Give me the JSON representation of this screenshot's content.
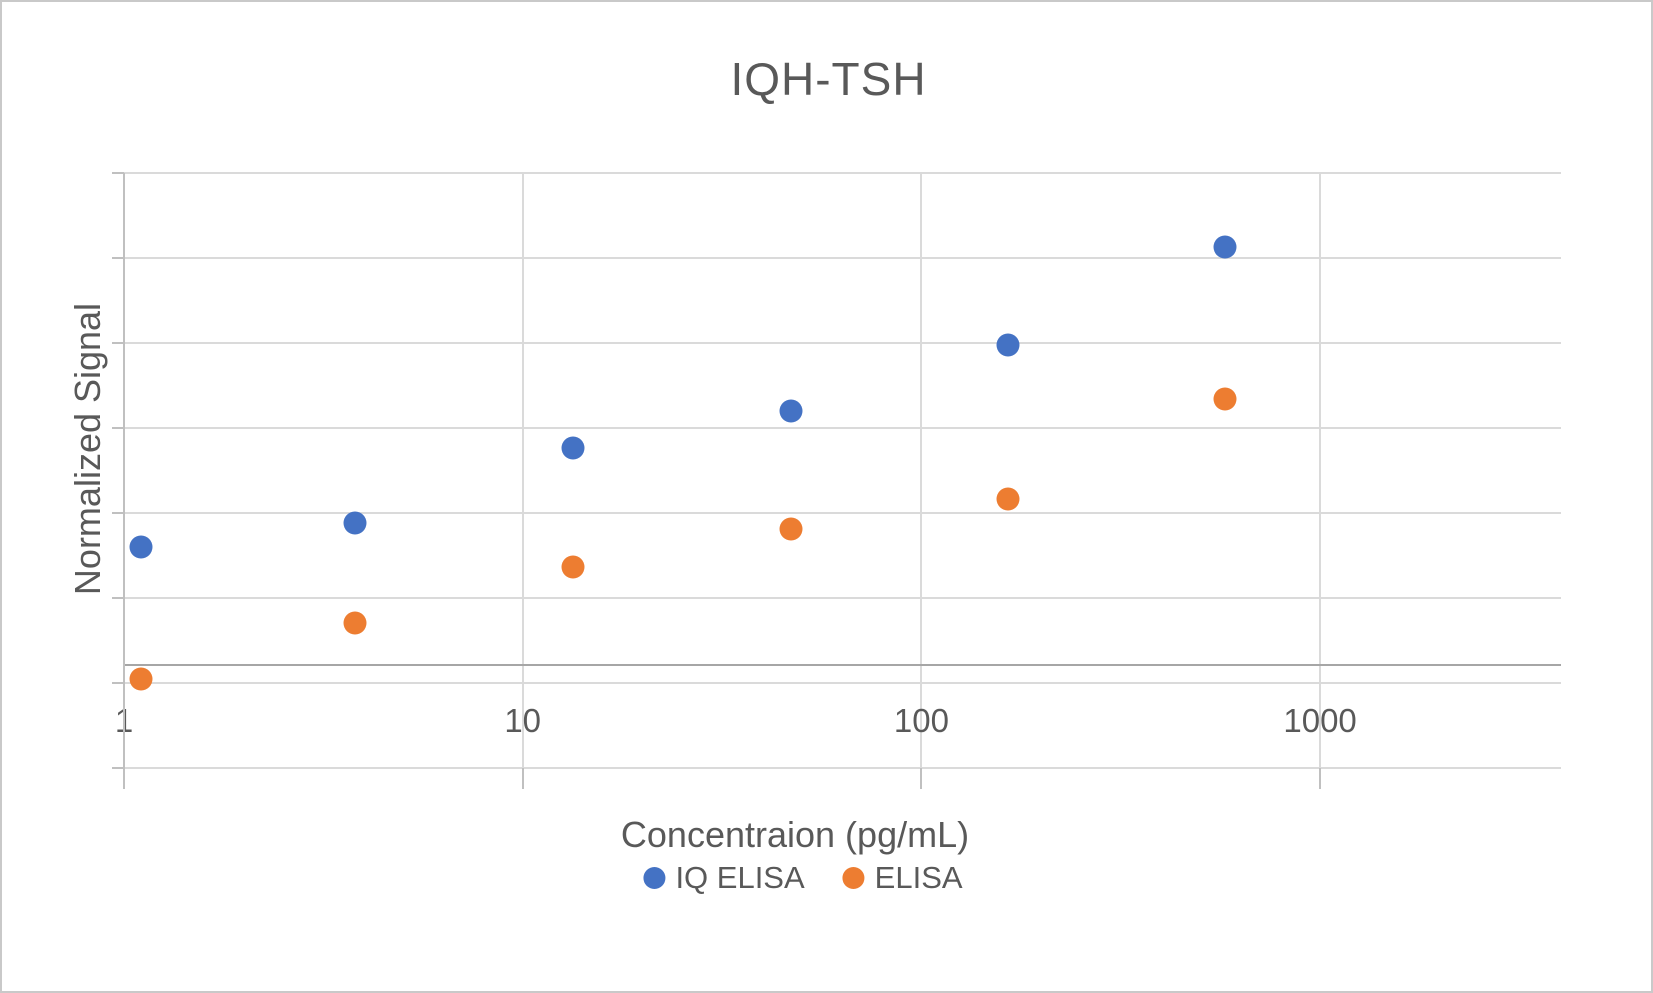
{
  "window": {
    "background": "#ffffff",
    "border_color": "#c9c9c9"
  },
  "chart_data": {
    "type": "scatter",
    "title": "IQH-TSH",
    "xlabel": "Concentraion (pg/mL)",
    "ylabel": "Normalized Signal",
    "x_scale": "log10",
    "x_range": [
      1,
      4000
    ],
    "x_ticks": [
      {
        "label": "1",
        "value": 1
      },
      {
        "label": "10",
        "value": 10
      },
      {
        "label": "100",
        "value": 100
      },
      {
        "label": "1000",
        "value": 1000
      }
    ],
    "y_axis": {
      "labels_visible": false,
      "units_note": "Y axis shows tick marks and gridlines but no numeric labels; y values below are in gridline units measured relative to the darker horizontal axis line (y=0).",
      "min": -1.212,
      "max": 5.788,
      "gridline_step": 1,
      "axis_line_at": 0
    },
    "grid": true,
    "legend_position": "bottom",
    "series": [
      {
        "name": "IQ ELISA",
        "color": "#4472C4",
        "points": [
          {
            "x": 1.1,
            "y": 1.39
          },
          {
            "x": 3.8,
            "y": 1.67
          },
          {
            "x": 13.4,
            "y": 2.55
          },
          {
            "x": 47,
            "y": 2.99
          },
          {
            "x": 165,
            "y": 3.76
          },
          {
            "x": 578,
            "y": 4.92
          }
        ]
      },
      {
        "name": "ELISA",
        "color": "#ED7D31",
        "points": [
          {
            "x": 1.1,
            "y": -0.16
          },
          {
            "x": 3.8,
            "y": 0.49
          },
          {
            "x": 13.4,
            "y": 1.15
          },
          {
            "x": 47,
            "y": 1.6
          },
          {
            "x": 165,
            "y": 1.95
          },
          {
            "x": 578,
            "y": 3.13
          }
        ]
      }
    ]
  }
}
